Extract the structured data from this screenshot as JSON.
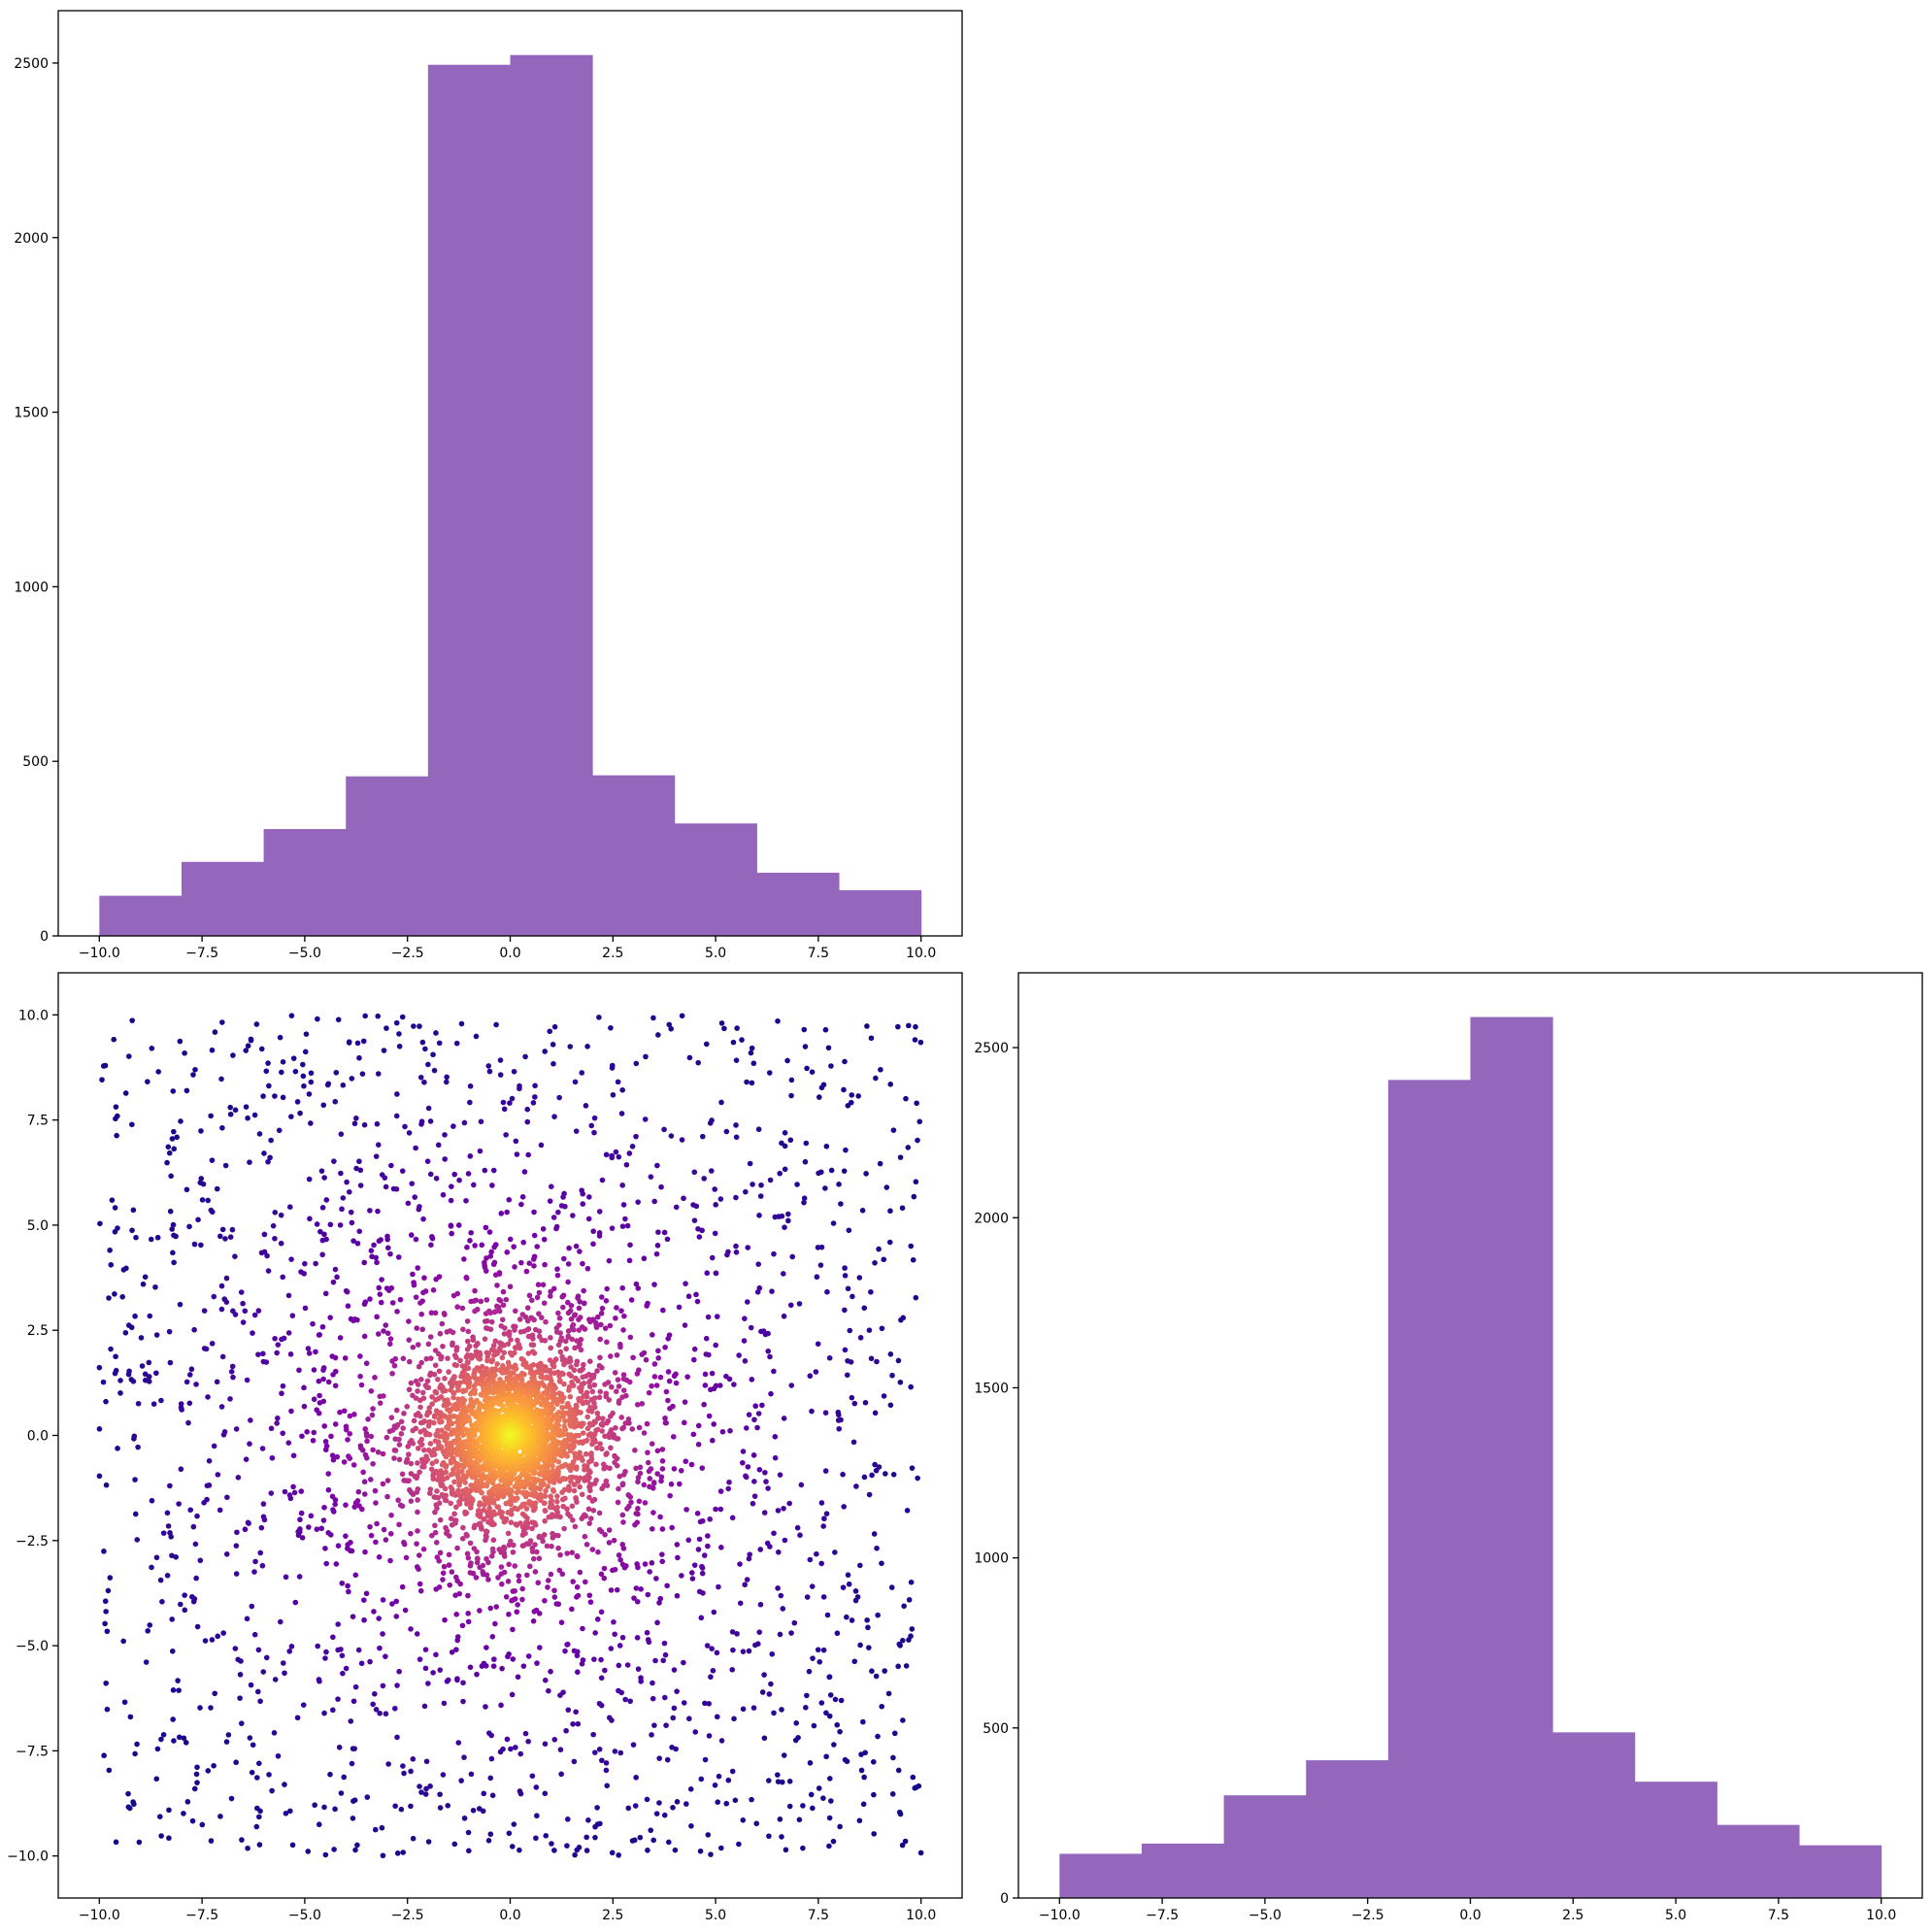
{
  "chart_data": [
    {
      "type": "bar",
      "subtype": "histogram",
      "bin_edges": [
        -10,
        -8,
        -6,
        -4,
        -2,
        0,
        2,
        4,
        6,
        8,
        10
      ],
      "values": [
        115,
        212,
        306,
        457,
        2495,
        2523,
        460,
        322,
        181,
        131
      ],
      "color": "#9467bd",
      "xlim": [
        -11,
        11
      ],
      "ylim": [
        0,
        2650
      ],
      "xticks": [
        -10.0,
        -7.5,
        -5.0,
        -2.5,
        0.0,
        2.5,
        5.0,
        7.5,
        10.0
      ],
      "xtick_labels": [
        "−10.0",
        "−7.5",
        "−5.0",
        "−2.5",
        "0.0",
        "2.5",
        "5.0",
        "7.5",
        "10.0"
      ],
      "yticks": [
        0,
        500,
        1000,
        1500,
        2000,
        2500
      ],
      "ytick_labels": [
        "0",
        "500",
        "1000",
        "1500",
        "2000",
        "2500"
      ],
      "title": "",
      "xlabel": "",
      "ylabel": "",
      "grid": false
    },
    {
      "type": "scatter",
      "description_of_points": "about 5000 points: dense cluster near (0,0) plus roughly uniform background in [-10,10]x[-10,10]; colored by local density with plasma colormap",
      "x_range": [
        -10,
        10
      ],
      "y_range": [
        -10,
        10
      ],
      "colormap": "plasma",
      "xlim": [
        -11,
        11
      ],
      "ylim": [
        -11,
        11
      ],
      "xticks": [
        -10.0,
        -7.5,
        -5.0,
        -2.5,
        0.0,
        2.5,
        5.0,
        7.5,
        10.0
      ],
      "xtick_labels": [
        "−10.0",
        "−7.5",
        "−5.0",
        "−2.5",
        "0.0",
        "2.5",
        "5.0",
        "7.5",
        "10.0"
      ],
      "yticks": [
        -10.0,
        -7.5,
        -5.0,
        -2.5,
        0.0,
        2.5,
        5.0,
        7.5,
        10.0
      ],
      "ytick_labels": [
        "−10.0",
        "−7.5",
        "−5.0",
        "−2.5",
        "0.0",
        "2.5",
        "5.0",
        "7.5",
        "10.0"
      ],
      "title": "",
      "xlabel": "",
      "ylabel": "",
      "grid": false
    },
    {
      "type": "bar",
      "subtype": "histogram",
      "bin_edges": [
        -10,
        -8,
        -6,
        -4,
        -2,
        0,
        2,
        4,
        6,
        8,
        10
      ],
      "values": [
        130,
        160,
        302,
        405,
        2405,
        2590,
        487,
        342,
        215,
        155
      ],
      "color": "#9467bd",
      "xlim": [
        -11,
        11
      ],
      "ylim": [
        0,
        2720
      ],
      "xticks": [
        -10.0,
        -7.5,
        -5.0,
        -2.5,
        0.0,
        2.5,
        5.0,
        7.5,
        10.0
      ],
      "xtick_labels": [
        "−10.0",
        "−7.5",
        "−5.0",
        "−2.5",
        "0.0",
        "2.5",
        "5.0",
        "7.5",
        "10.0"
      ],
      "yticks": [
        0,
        500,
        1000,
        1500,
        2000,
        2500
      ],
      "ytick_labels": [
        "0",
        "500",
        "1000",
        "1500",
        "2000",
        "2500"
      ],
      "title": "",
      "xlabel": "",
      "ylabel": "",
      "grid": false
    }
  ]
}
